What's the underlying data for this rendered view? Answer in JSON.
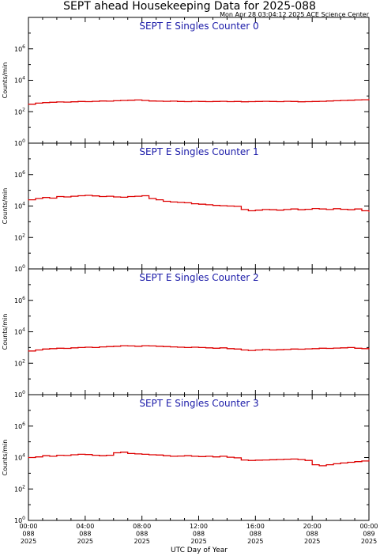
{
  "header": {
    "title": "SEPT ahead Housekeeping Data for 2025-088",
    "timestamp": "Mon Apr 28 03:04:12 2025 ACE Science Center"
  },
  "axes": {
    "ylabel": "Counts/min",
    "xlabel": "UTC Day of Year",
    "y_tick_labels": [
      "10^0",
      "10^2",
      "10^4",
      "10^6"
    ],
    "x_tick_labels": [
      [
        "00:00",
        "088",
        "2025"
      ],
      [
        "04:00",
        "088",
        "2025"
      ],
      [
        "08:00",
        "088",
        "2025"
      ],
      [
        "12:00",
        "088",
        "2025"
      ],
      [
        "16:00",
        "088",
        "2025"
      ],
      [
        "20:00",
        "088",
        "2025"
      ],
      [
        "00:00",
        "089",
        "2025"
      ]
    ]
  },
  "colors": {
    "series": "#dd0000",
    "panel_title": "#1a1aa8",
    "axis": "#000000"
  },
  "chart_data": [
    {
      "type": "line",
      "title": "SEPT E Singles Counter 0",
      "x_unit": "hours",
      "xlim": [
        0,
        24
      ],
      "ylim": [
        1,
        100000000
      ],
      "y_scale": "log",
      "x": [
        0,
        0.5,
        1,
        1.5,
        2,
        2.5,
        3,
        3.5,
        4,
        4.5,
        5,
        5.5,
        6,
        6.5,
        7,
        7.5,
        8,
        8.5,
        9,
        9.5,
        10,
        10.5,
        11,
        11.5,
        12,
        12.5,
        13,
        13.5,
        14,
        14.5,
        15,
        15.5,
        16,
        16.5,
        17,
        17.5,
        18,
        18.5,
        19,
        19.5,
        20,
        20.5,
        21,
        21.5,
        22,
        22.5,
        23,
        23.5,
        24
      ],
      "values": [
        300,
        350,
        380,
        400,
        420,
        410,
        430,
        450,
        440,
        460,
        480,
        470,
        500,
        520,
        540,
        560,
        520,
        480,
        470,
        460,
        470,
        450,
        440,
        460,
        450,
        440,
        450,
        460,
        440,
        450,
        430,
        440,
        450,
        460,
        450,
        440,
        460,
        450,
        430,
        440,
        450,
        460,
        480,
        500,
        520,
        540,
        560,
        580,
        620
      ]
    },
    {
      "type": "line",
      "title": "SEPT E Singles Counter 1",
      "x_unit": "hours",
      "xlim": [
        0,
        24
      ],
      "ylim": [
        1,
        100000000
      ],
      "y_scale": "log",
      "x": [
        0,
        0.5,
        1,
        1.5,
        2,
        2.5,
        3,
        3.5,
        4,
        4.5,
        5,
        5.5,
        6,
        6.5,
        7,
        7.5,
        8,
        8.5,
        9,
        9.5,
        10,
        10.5,
        11,
        11.5,
        12,
        12.5,
        13,
        13.5,
        14,
        14.5,
        15,
        15.5,
        16,
        16.5,
        17,
        17.5,
        18,
        18.5,
        19,
        19.5,
        20,
        20.5,
        21,
        21.5,
        22,
        22.5,
        23,
        23.5,
        24
      ],
      "values": [
        25000,
        30000,
        35000,
        32000,
        40000,
        38000,
        42000,
        45000,
        48000,
        44000,
        40000,
        42000,
        38000,
        36000,
        40000,
        42000,
        45000,
        30000,
        25000,
        20000,
        18000,
        17000,
        16000,
        14000,
        13000,
        12000,
        11000,
        10500,
        10000,
        9500,
        6000,
        5000,
        5500,
        6000,
        5800,
        5500,
        6000,
        6500,
        5800,
        6200,
        7000,
        6500,
        6000,
        6800,
        6200,
        5800,
        6500,
        5000,
        4500
      ]
    },
    {
      "type": "line",
      "title": "SEPT E Singles Counter 2",
      "x_unit": "hours",
      "xlim": [
        0,
        24
      ],
      "ylim": [
        1,
        100000000
      ],
      "y_scale": "log",
      "x": [
        0,
        0.5,
        1,
        1.5,
        2,
        2.5,
        3,
        3.5,
        4,
        4.5,
        5,
        5.5,
        6,
        6.5,
        7,
        7.5,
        8,
        8.5,
        9,
        9.5,
        10,
        10.5,
        11,
        11.5,
        12,
        12.5,
        13,
        13.5,
        14,
        14.5,
        15,
        15.5,
        16,
        16.5,
        17,
        17.5,
        18,
        18.5,
        19,
        19.5,
        20,
        20.5,
        21,
        21.5,
        22,
        22.5,
        23,
        23.5,
        24
      ],
      "values": [
        600,
        700,
        800,
        850,
        900,
        880,
        950,
        1000,
        1050,
        1000,
        1100,
        1150,
        1200,
        1300,
        1250,
        1200,
        1300,
        1250,
        1200,
        1150,
        1100,
        1050,
        1000,
        1050,
        1000,
        950,
        900,
        950,
        850,
        800,
        700,
        650,
        700,
        750,
        700,
        720,
        750,
        800,
        780,
        820,
        850,
        900,
        880,
        920,
        950,
        1000,
        900,
        850,
        900
      ]
    },
    {
      "type": "line",
      "title": "SEPT E Singles Counter 3",
      "x_unit": "hours",
      "xlim": [
        0,
        24
      ],
      "ylim": [
        1,
        100000000
      ],
      "y_scale": "log",
      "x": [
        0,
        0.5,
        1,
        1.5,
        2,
        2.5,
        3,
        3.5,
        4,
        4.5,
        5,
        5.5,
        6,
        6.5,
        7,
        7.5,
        8,
        8.5,
        9,
        9.5,
        10,
        10.5,
        11,
        11.5,
        12,
        12.5,
        13,
        13.5,
        14,
        14.5,
        15,
        15.5,
        16,
        16.5,
        17,
        17.5,
        18,
        18.5,
        19,
        19.5,
        20,
        20.5,
        21,
        21.5,
        22,
        22.5,
        23,
        23.5,
        24
      ],
      "values": [
        10000,
        11000,
        13000,
        12000,
        14000,
        13500,
        15000,
        16000,
        15500,
        14000,
        13000,
        14000,
        20000,
        22000,
        18000,
        17000,
        16000,
        15000,
        14500,
        13000,
        12000,
        12500,
        13000,
        12000,
        11500,
        12000,
        11000,
        12000,
        10500,
        9500,
        7000,
        6500,
        6800,
        7000,
        7200,
        7500,
        7800,
        8000,
        7500,
        6500,
        3500,
        3000,
        3500,
        4000,
        4500,
        5000,
        5500,
        6000,
        6500
      ]
    }
  ]
}
